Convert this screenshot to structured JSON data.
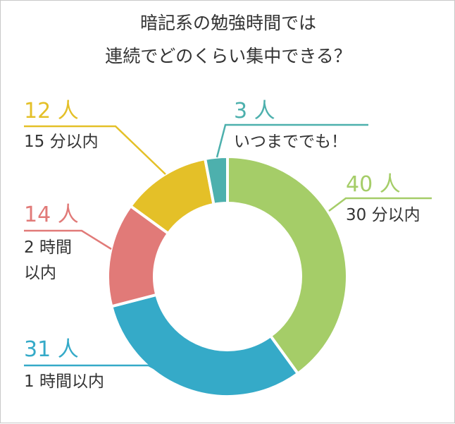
{
  "chart_data": {
    "type": "pie",
    "variant": "donut",
    "title_lines": [
      "暗記系の勉強時間では",
      "連続でどのくらい集中できる？"
    ],
    "slices": [
      {
        "label": "30 分以内",
        "count_label": "40 人",
        "value": 40,
        "color": "#a5cd68"
      },
      {
        "label": "1 時間以内",
        "count_label": "31 人",
        "value": 31,
        "color": "#35aac8"
      },
      {
        "label_lines": [
          "2 時間",
          "以内"
        ],
        "count_label": "14 人",
        "value": 14,
        "color": "#e17a78"
      },
      {
        "label": "15 分以内",
        "count_label": "12 人",
        "value": 12,
        "color": "#e4c028"
      },
      {
        "label": "いつまででも！",
        "count_label": "3 人",
        "value": 3,
        "color": "#4db0ad"
      }
    ],
    "text_color": "#333333",
    "start_angle": "12 o'clock",
    "direction": "clockwise"
  }
}
